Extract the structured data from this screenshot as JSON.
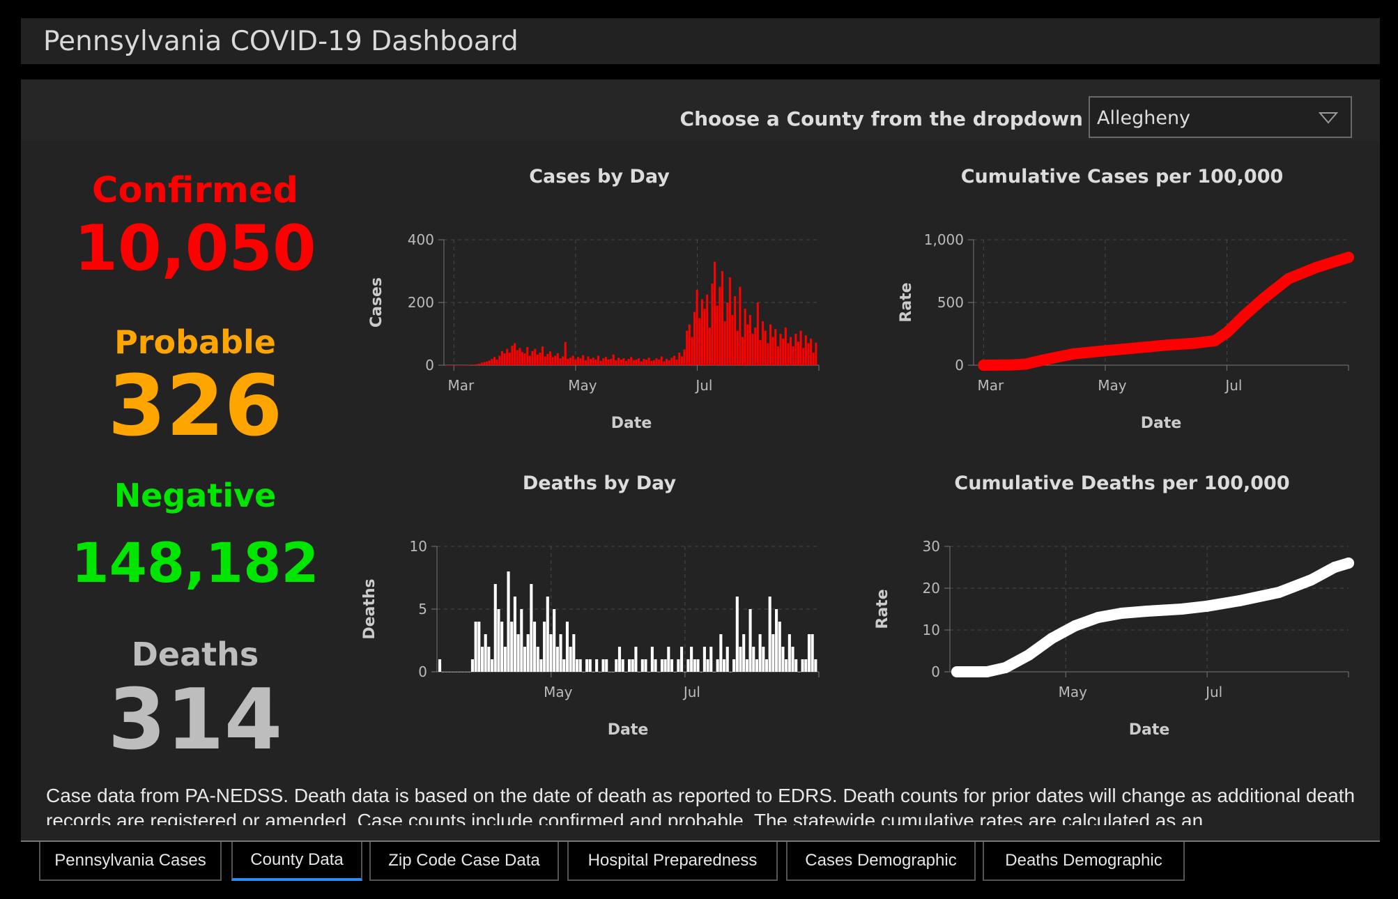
{
  "title": "Pennsylvania COVID-19 Dashboard",
  "selector": {
    "label": "Choose a County from the dropdown",
    "value": "Allegheny",
    "icon": "chevron-down-icon"
  },
  "stats": {
    "confirmed": {
      "label": "Confirmed",
      "value": "10,050",
      "color": "#ff0000"
    },
    "probable": {
      "label": "Probable",
      "value": "326",
      "color": "#ffa500"
    },
    "negative": {
      "label": "Negative",
      "value": "148,182",
      "color": "#00e600"
    },
    "deaths": {
      "label": "Deaths",
      "value": "314",
      "color": "#bdbdbd"
    }
  },
  "chart_data": [
    {
      "type": "bar",
      "title": "Cases by Day",
      "xlabel": "Date",
      "ylabel": "Cases",
      "ylim": [
        0,
        400
      ],
      "yticks": [
        "0",
        "200",
        "400"
      ],
      "xticks": [
        "Mar",
        "May",
        "Jul"
      ],
      "color": "#ff0000",
      "grid": true,
      "x_range": [
        "2020-03-01",
        "2020-08-31"
      ],
      "values": [
        0,
        0,
        0,
        0,
        0,
        0,
        0,
        0,
        0,
        1,
        2,
        2,
        3,
        5,
        8,
        10,
        12,
        15,
        20,
        26,
        18,
        30,
        45,
        38,
        52,
        40,
        62,
        70,
        48,
        55,
        42,
        38,
        58,
        30,
        45,
        52,
        34,
        40,
        60,
        28,
        36,
        44,
        25,
        30,
        38,
        22,
        28,
        74,
        20,
        24,
        30,
        18,
        26,
        22,
        32,
        16,
        28,
        20,
        24,
        18,
        30,
        14,
        22,
        26,
        18,
        20,
        34,
        16,
        24,
        18,
        22,
        14,
        20,
        26,
        16,
        18,
        22,
        12,
        20,
        18,
        24,
        14,
        16,
        22,
        18,
        28,
        12,
        20,
        16,
        24,
        30,
        18,
        40,
        28,
        50,
        110,
        130,
        90,
        170,
        240,
        150,
        210,
        180,
        225,
        120,
        260,
        330,
        190,
        250,
        300,
        140,
        200,
        280,
        160,
        220,
        110,
        250,
        90,
        180,
        130,
        160,
        100,
        120,
        200,
        80,
        140,
        110,
        70,
        130,
        90,
        115,
        60,
        100,
        85,
        120,
        70,
        90,
        60,
        100,
        75,
        110,
        55,
        95,
        70,
        85,
        40,
        72
      ]
    },
    {
      "type": "line",
      "title": "Cumulative Cases per 100,000",
      "xlabel": "Date",
      "ylabel": "Rate",
      "ylim": [
        0,
        1000
      ],
      "yticks": [
        "0",
        "500",
        "1,000"
      ],
      "xticks": [
        "Mar",
        "May",
        "Jul"
      ],
      "color": "#ff0000",
      "grid": true,
      "x": [
        "2020-03-01",
        "2020-03-15",
        "2020-03-22",
        "2020-04-01",
        "2020-04-15",
        "2020-05-01",
        "2020-05-15",
        "2020-06-01",
        "2020-06-15",
        "2020-06-25",
        "2020-07-01",
        "2020-07-10",
        "2020-07-20",
        "2020-08-01",
        "2020-08-15",
        "2020-08-31"
      ],
      "y": [
        0,
        2,
        8,
        45,
        90,
        115,
        135,
        160,
        175,
        195,
        260,
        400,
        540,
        690,
        780,
        860
      ]
    },
    {
      "type": "bar",
      "title": "Deaths by Day",
      "xlabel": "Date",
      "ylabel": "Deaths",
      "ylim": [
        0,
        10
      ],
      "yticks": [
        "0",
        "5",
        "10"
      ],
      "xticks": [
        "May",
        "Jul"
      ],
      "color": "#ffffff",
      "grid": true,
      "x_range": [
        "2020-03-15",
        "2020-08-31"
      ],
      "values": [
        1,
        0,
        0,
        0,
        0,
        0,
        0,
        0,
        0,
        0,
        1,
        4,
        4,
        2,
        3,
        2,
        1,
        7,
        5,
        4,
        2,
        8,
        4,
        6,
        3,
        5,
        2,
        3,
        7,
        4,
        2,
        1,
        4,
        6,
        3,
        5,
        2,
        3,
        1,
        4,
        2,
        3,
        1,
        1,
        0,
        1,
        1,
        0,
        1,
        0,
        1,
        1,
        0,
        0,
        1,
        2,
        1,
        0,
        1,
        1,
        2,
        0,
        1,
        1,
        0,
        2,
        1,
        0,
        1,
        1,
        2,
        1,
        0,
        1,
        2,
        0,
        1,
        2,
        1,
        1,
        0,
        2,
        1,
        2,
        0,
        1,
        3,
        1,
        2,
        0,
        1,
        6,
        2,
        3,
        1,
        5,
        2,
        1,
        3,
        2,
        1,
        6,
        3,
        5,
        4,
        2,
        1,
        3,
        2,
        1,
        0,
        1,
        1,
        3,
        3,
        1
      ]
    },
    {
      "type": "line",
      "title": "Cumulative Deaths per 100,000",
      "xlabel": "Date",
      "ylabel": "Rate",
      "ylim": [
        0,
        30
      ],
      "yticks": [
        "0",
        "10",
        "20",
        "30"
      ],
      "xticks": [
        "May",
        "Jul"
      ],
      "color": "#ffffff",
      "grid": true,
      "x": [
        "2020-03-15",
        "2020-03-28",
        "2020-04-05",
        "2020-04-15",
        "2020-04-25",
        "2020-05-05",
        "2020-05-15",
        "2020-05-25",
        "2020-06-05",
        "2020-06-20",
        "2020-07-01",
        "2020-07-15",
        "2020-08-01",
        "2020-08-15",
        "2020-08-25",
        "2020-08-31"
      ],
      "y": [
        0,
        0,
        1,
        4,
        8,
        11,
        13,
        14,
        14.5,
        15,
        15.7,
        17,
        19,
        22,
        25,
        26
      ]
    }
  ],
  "footnote": "Case data from PA-NEDSS.  Death data is based on the date of death as reported to EDRS. Death counts for prior dates will change as additional death records are registered or amended.  Case counts include confirmed and probable. The statewide cumulative rates are calculated as an",
  "tabs": [
    {
      "label": "Pennsylvania Cases",
      "active": false
    },
    {
      "label": "County Data",
      "active": true
    },
    {
      "label": "Zip Code Case Data",
      "active": false
    },
    {
      "label": "Hospital Preparedness",
      "active": false
    },
    {
      "label": "Cases Demographic",
      "active": false
    },
    {
      "label": "Deaths Demographic",
      "active": false
    }
  ]
}
